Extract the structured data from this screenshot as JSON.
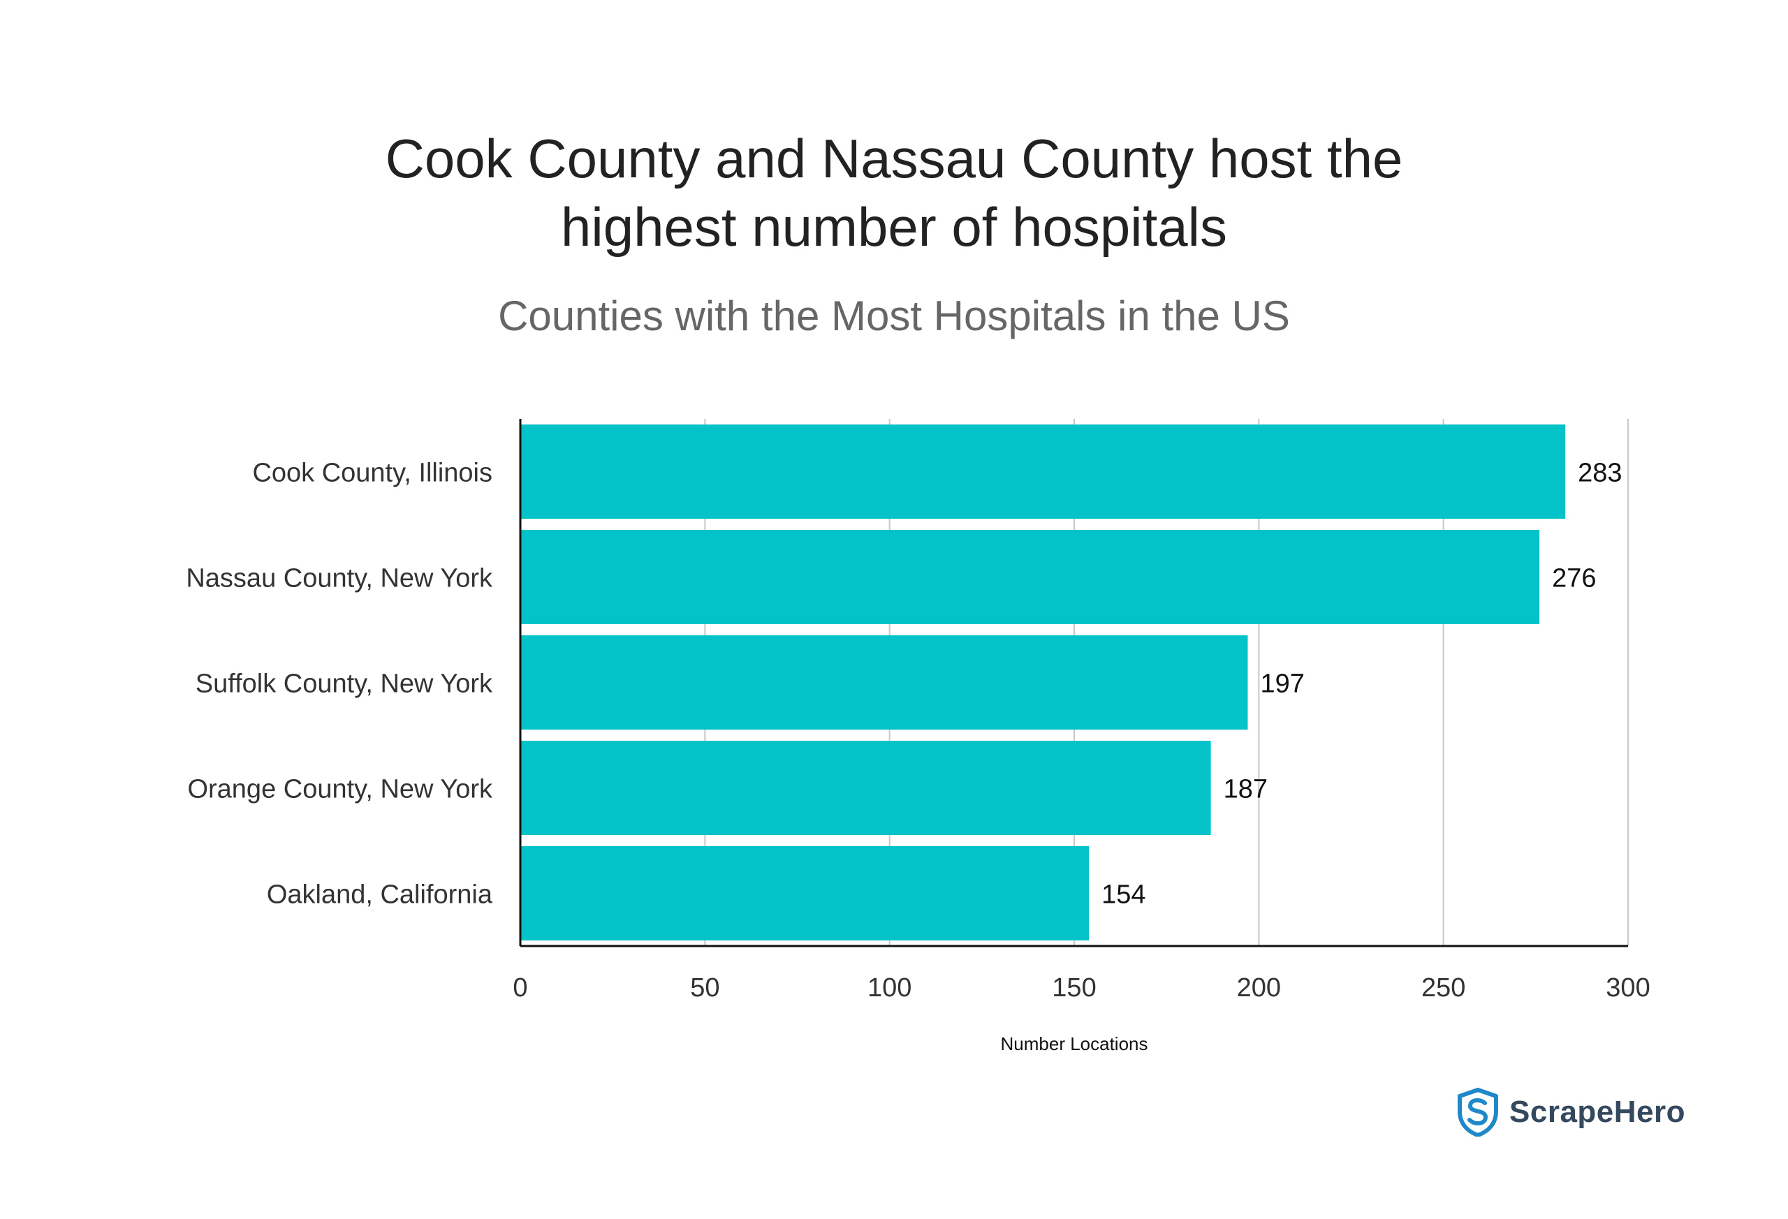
{
  "title_lines": [
    "Cook County and Nassau County host the",
    "highest number of hospitals"
  ],
  "subtitle": "Counties with the Most Hospitals in the US",
  "chart_data": {
    "type": "bar",
    "orientation": "horizontal",
    "title": "Cook County and Nassau County host the highest number of hospitals",
    "subtitle": "Counties with the Most Hospitals in the US",
    "categories": [
      "Cook County, Illinois",
      "Nassau County, New York",
      "Suffolk County, New York",
      "Orange County, New York",
      "Oakland, California"
    ],
    "values": [
      283,
      276,
      197,
      187,
      154
    ],
    "xlabel": "Number Locations",
    "ylabel": "",
    "xlim": [
      0,
      300
    ],
    "xticks": [
      0,
      50,
      100,
      150,
      200,
      250,
      300
    ],
    "grid": "vertical",
    "data_labels": true,
    "bar_color": "#03C3C9"
  },
  "brand": {
    "name": "ScrapeHero",
    "icon": "shield-s-icon",
    "color": "#1E88C9",
    "text_color": "#34495E"
  },
  "colors": {
    "grid": "#c8c8c8",
    "axis": "#111111",
    "tick_text": "#333333",
    "category_text": "#333333",
    "value_text": "#111111"
  }
}
